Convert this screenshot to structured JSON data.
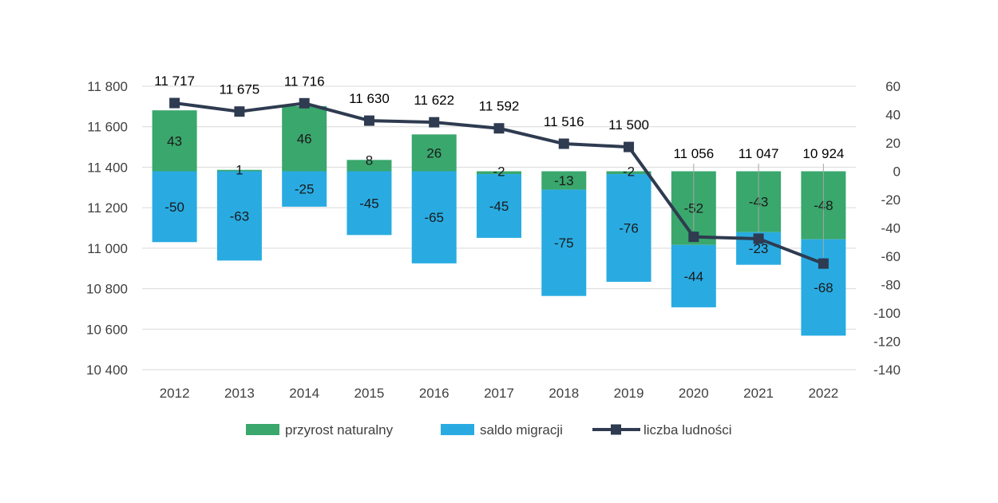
{
  "chart_data": {
    "type": "bar",
    "categories": [
      "2012",
      "2013",
      "2014",
      "2015",
      "2016",
      "2017",
      "2018",
      "2019",
      "2020",
      "2021",
      "2022"
    ],
    "series": [
      {
        "name": "przyrost naturalny",
        "kind": "bar",
        "axis": "right",
        "color": "#3aa76d",
        "values": [
          43,
          1,
          46,
          8,
          26,
          -2,
          -13,
          -2,
          -52,
          -43,
          -48
        ]
      },
      {
        "name": "saldo migracji",
        "kind": "bar",
        "axis": "right",
        "color": "#29abe2",
        "values": [
          -50,
          -63,
          -25,
          -45,
          -65,
          -45,
          -75,
          -76,
          -44,
          -23,
          -68
        ]
      },
      {
        "name": "liczba ludności",
        "kind": "line",
        "axis": "left",
        "color": "#2e3b50",
        "values": [
          11717,
          11675,
          11716,
          11630,
          11622,
          11592,
          11516,
          11500,
          11056,
          11047,
          10924
        ]
      }
    ],
    "line_labels": [
      "11 717",
      "11 675",
      "11 716",
      "11 630",
      "11 622",
      "11 592",
      "11 516",
      "11 500",
      "11 056",
      "11 047",
      "10 924"
    ],
    "left_axis": {
      "min": 10400,
      "max": 11800,
      "step": 200,
      "tick_labels": [
        "10 400",
        "10 600",
        "10 800",
        "11 000",
        "11 200",
        "11 400",
        "11 600",
        "11 800"
      ]
    },
    "right_axis": {
      "min": -140,
      "max": 60,
      "step": 20,
      "tick_labels": [
        "-140",
        "-120",
        "-100",
        "-80",
        "-60",
        "-40",
        "-20",
        "0",
        "20",
        "40",
        "60"
      ]
    },
    "grid": true,
    "legend_position": "bottom"
  }
}
